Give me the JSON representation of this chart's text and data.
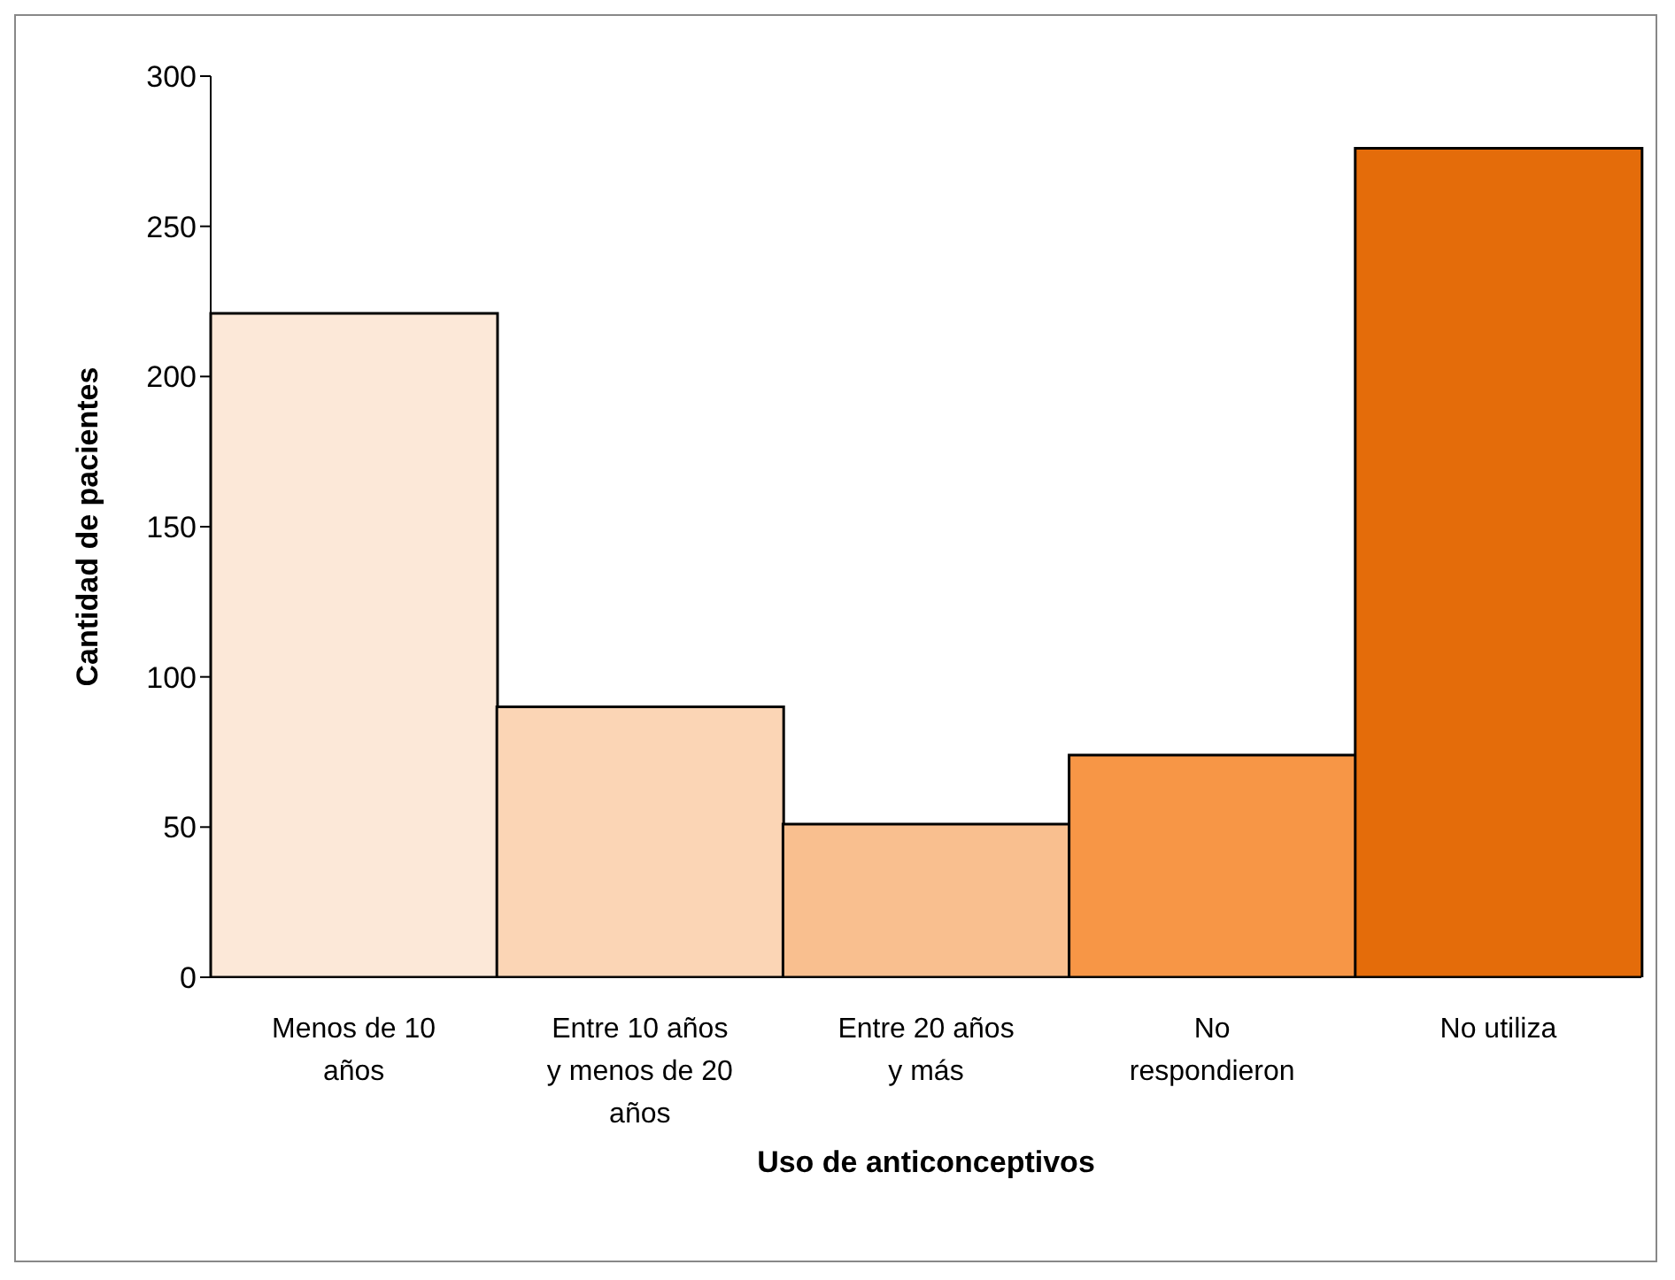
{
  "chart_data": {
    "type": "bar",
    "xlabel": "Uso de anticonceptivos",
    "ylabel": "Cantidad de pacientes",
    "categories": [
      "Menos de 10 años",
      "Entre 10 años y menos de 20 años",
      "Entre 20 años y más",
      "No respondieron",
      "No utiliza"
    ],
    "values": [
      221,
      90,
      51,
      74,
      276
    ],
    "colors": [
      "#fce8d8",
      "#fbd5b5",
      "#f9bf8f",
      "#f79646",
      "#e46c0a"
    ],
    "ylim": [
      0,
      300
    ],
    "yticks": [
      0,
      50,
      100,
      150,
      200,
      250,
      300
    ],
    "grid": false,
    "legend": false
  }
}
